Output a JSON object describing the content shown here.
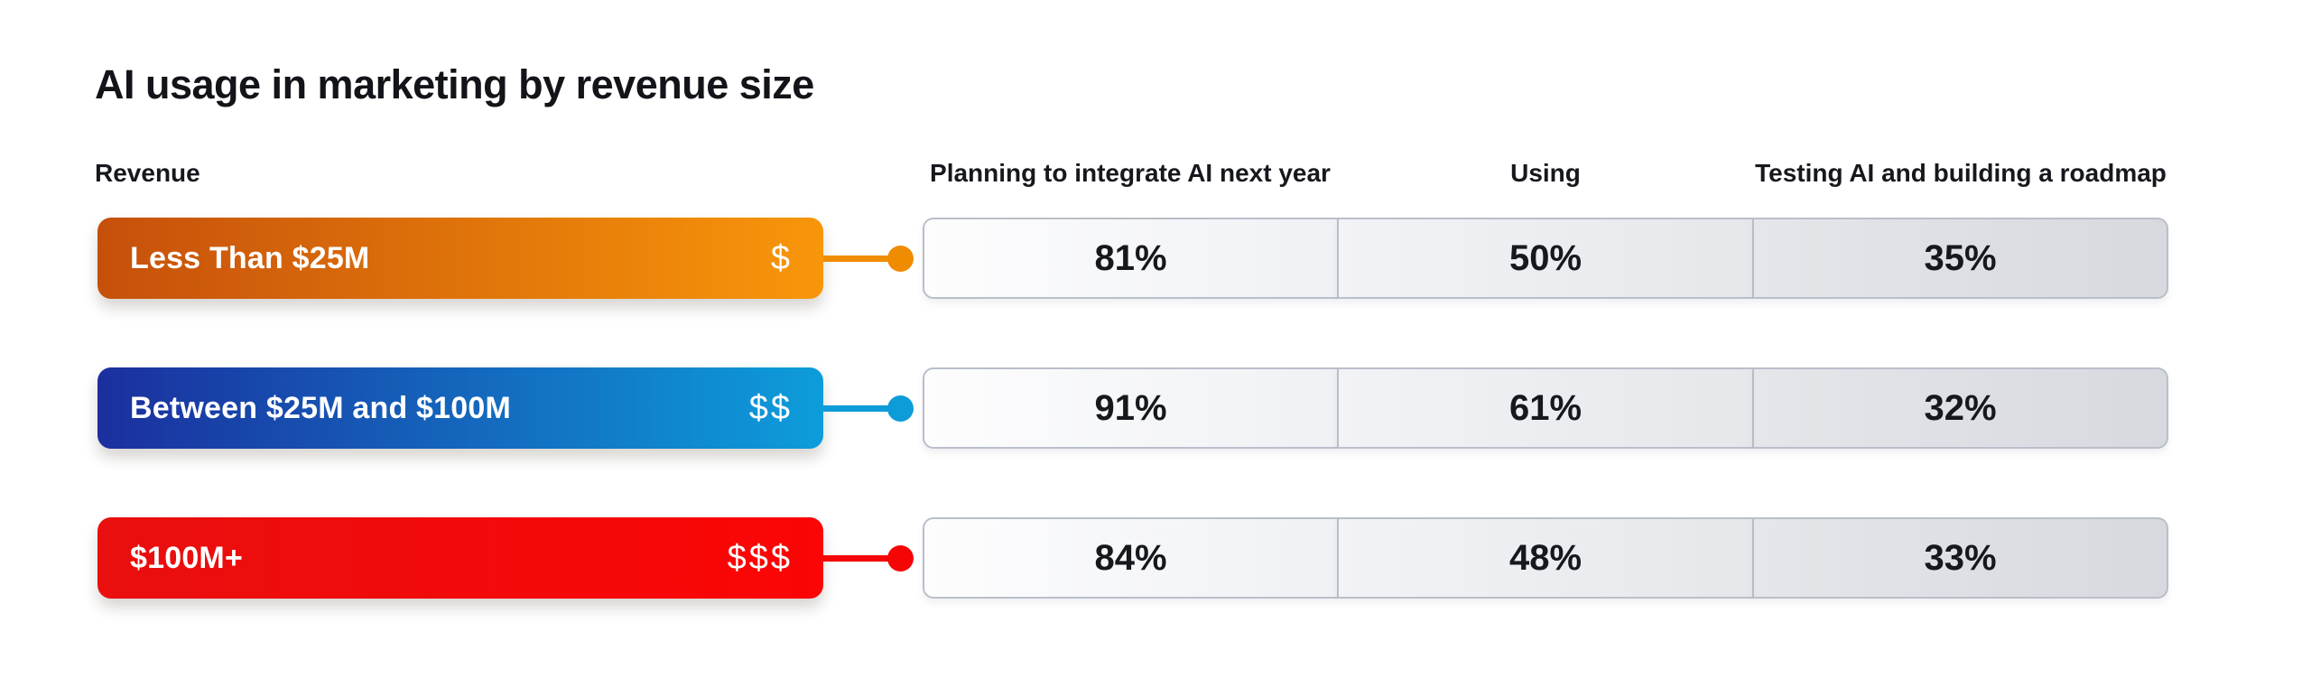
{
  "title": "AI usage in marketing by revenue size",
  "table": {
    "revenue_header": "Revenue",
    "columns": [
      "Planning to integrate AI next year",
      "Using",
      "Testing AI and building a roadmap"
    ],
    "rows": [
      {
        "label": "Less Than $25M",
        "dollar_icon": "$",
        "values": [
          "81%",
          "50%",
          "35%"
        ],
        "bar_gradient": [
          "#C6500B",
          "#F8960A"
        ],
        "accent": "#F08C01"
      },
      {
        "label": "Between $25M and $100M",
        "dollar_icon": "$$",
        "values": [
          "91%",
          "61%",
          "32%"
        ],
        "bar_gradient": [
          "#1B2F9E",
          "#0D9DDB"
        ],
        "accent": "#0E9CD9"
      },
      {
        "label": "$100M+",
        "dollar_icon": "$$$",
        "values": [
          "84%",
          "48%",
          "33%"
        ],
        "bar_gradient": [
          "#E90F0F",
          "#FB0505"
        ],
        "accent": "#F50505"
      }
    ],
    "colors": {
      "cell_border": "#B9BFCA",
      "value_text": "#16181D",
      "column_backgrounds": [
        [
          "#FDFDFE",
          "#EFF1F4"
        ],
        [
          "#F2F3F6",
          "#E5E7EB"
        ],
        [
          "#E4E6EA",
          "#D7D9DF"
        ]
      ]
    }
  },
  "chart_data": {
    "type": "table",
    "title": "AI usage in marketing by revenue size",
    "categories": [
      "Less Than $25M",
      "Between $25M and $100M",
      "$100M+"
    ],
    "series": [
      {
        "name": "Planning to integrate AI next year",
        "values": [
          81,
          91,
          84
        ]
      },
      {
        "name": "Using",
        "values": [
          50,
          61,
          48
        ]
      },
      {
        "name": "Testing AI and building a roadmap",
        "values": [
          35,
          32,
          33
        ]
      }
    ],
    "unit": "%",
    "layout": "rows are revenue bands, columns are AI adoption stages"
  }
}
